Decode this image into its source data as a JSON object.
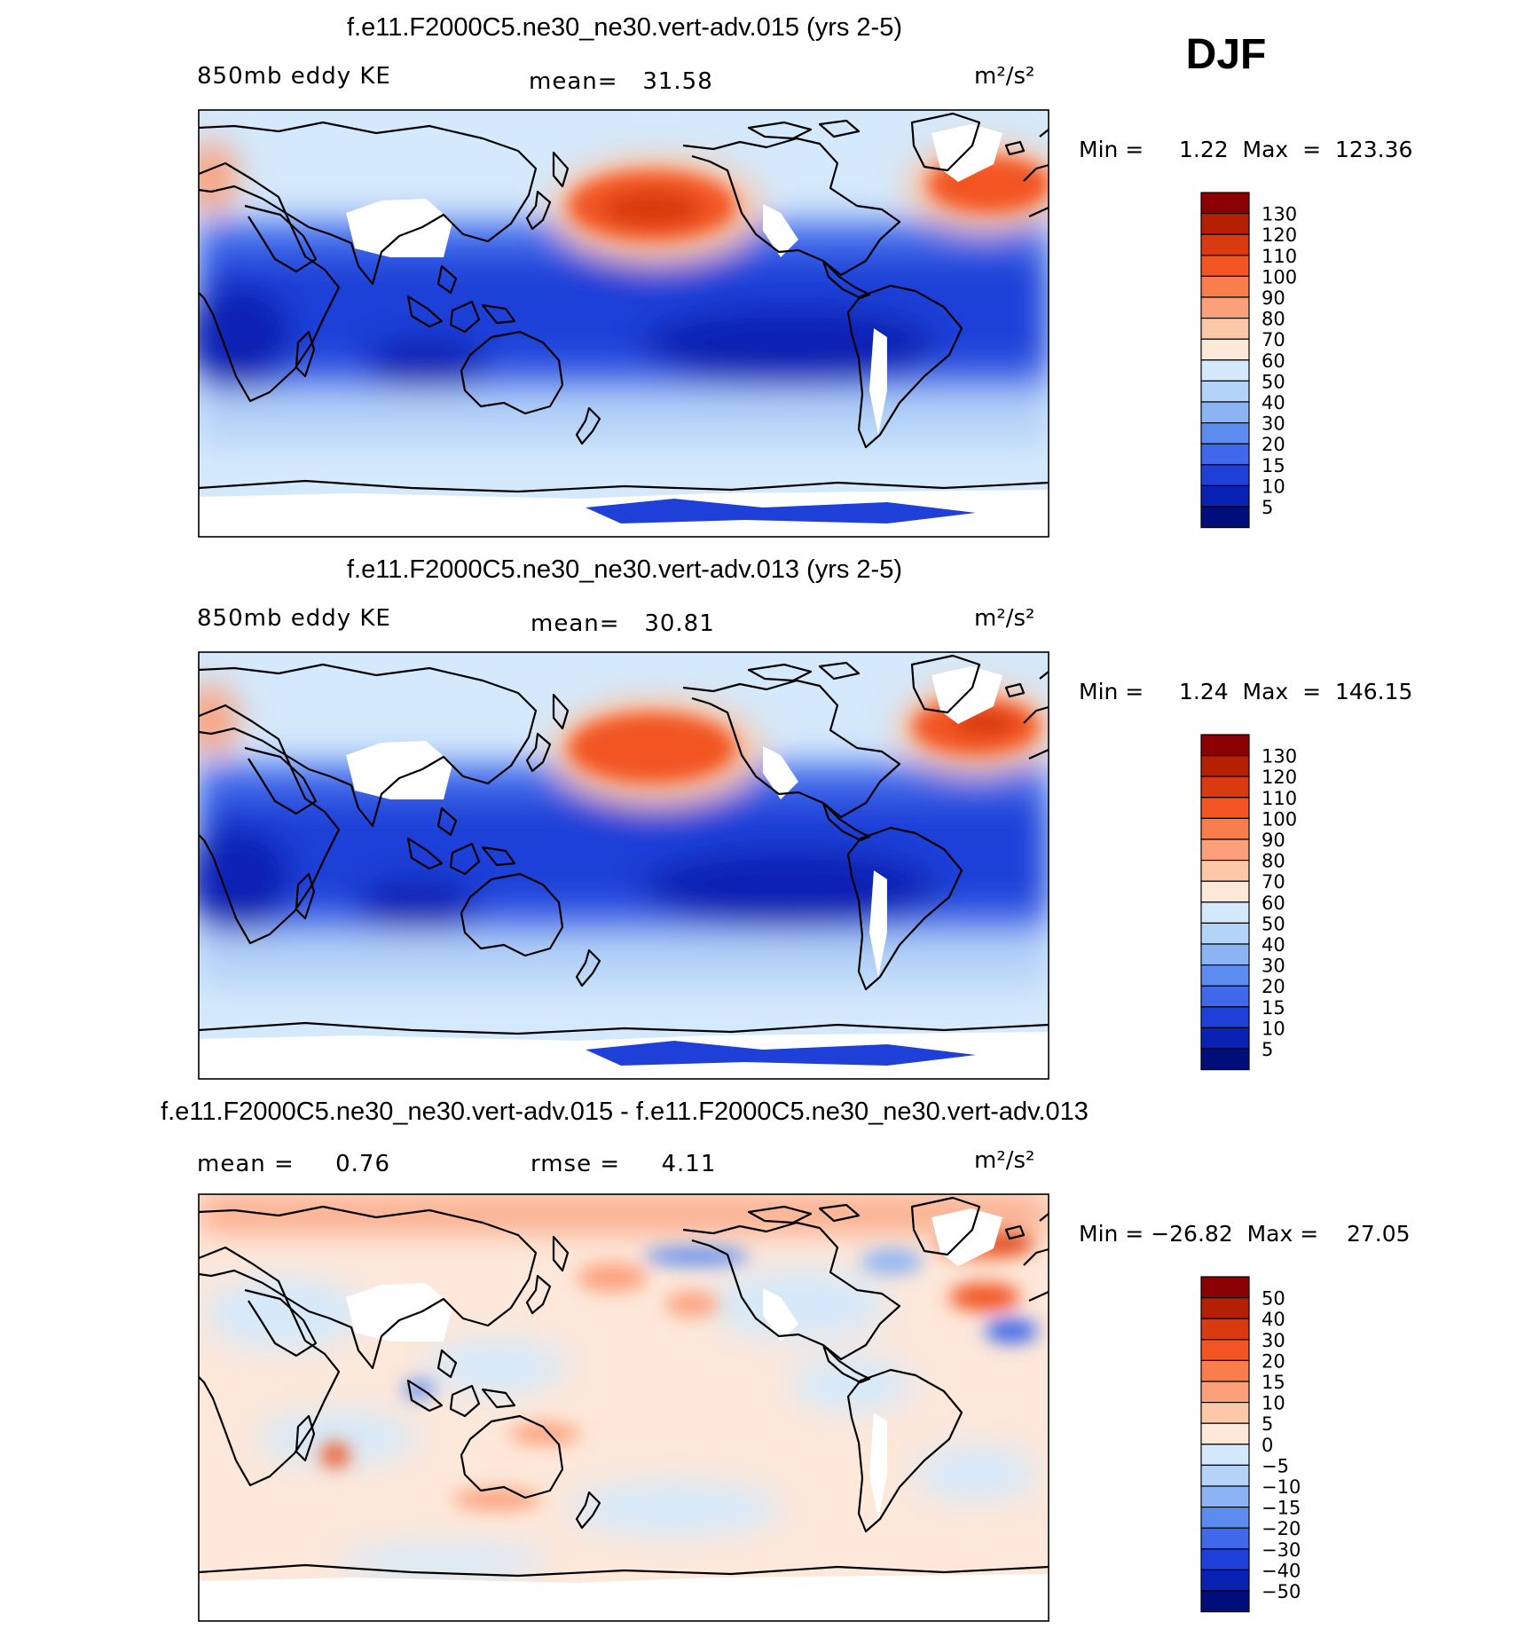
{
  "season": "DJF",
  "units": "m²/s²",
  "variable": "850mb eddy KE",
  "panels": [
    {
      "title": "f.e11.F2000C5.ne30_ne30.vert-adv.015 (yrs 2-5)",
      "left_label": "850mb eddy KE",
      "center_label": "mean=   31.58",
      "units": "m²/s²",
      "minmax_label": "Min =     1.22  Max  =  123.36"
    },
    {
      "title": "f.e11.F2000C5.ne30_ne30.vert-adv.013 (yrs 2-5)",
      "left_label": "850mb eddy KE",
      "center_label": "mean=   30.81",
      "units": "m²/s²",
      "minmax_label": "Min =     1.24  Max  =  146.15"
    },
    {
      "title": "f.e11.F2000C5.ne30_ne30.vert-adv.015 - f.e11.F2000C5.ne30_ne30.vert-adv.013",
      "left_label": "mean =     0.76",
      "center_label": "rmse =     4.11",
      "units": "m²/s²",
      "minmax_label": "Min = −26.82  Max =    27.05"
    }
  ],
  "chart_data": [
    {
      "type": "heatmap",
      "title": "f.e11.F2000C5.ne30_ne30.vert-adv.015 (yrs 2-5)",
      "field": "850mb eddy KE",
      "mean": 31.58,
      "min": 1.22,
      "max": 123.36,
      "units": "m2/s2",
      "legend_levels": [
        130,
        120,
        110,
        100,
        90,
        80,
        70,
        60,
        50,
        40,
        30,
        20,
        15,
        10,
        5
      ],
      "legend_colors": [
        "#8b0000",
        "#b52000",
        "#d93a10",
        "#f25522",
        "#fa7d4c",
        "#fca07c",
        "#fdc8a8",
        "#fde8da",
        "#d4e9fb",
        "#b4d3f8",
        "#8cb4f4",
        "#5c8cf0",
        "#3f69ea",
        "#1e40d8",
        "#0a22b4",
        "#000e7c"
      ]
    },
    {
      "type": "heatmap",
      "title": "f.e11.F2000C5.ne30_ne30.vert-adv.013 (yrs 2-5)",
      "field": "850mb eddy KE",
      "mean": 30.81,
      "min": 1.24,
      "max": 146.15,
      "units": "m2/s2",
      "legend_levels": [
        130,
        120,
        110,
        100,
        90,
        80,
        70,
        60,
        50,
        40,
        30,
        20,
        15,
        10,
        5
      ],
      "legend_colors": [
        "#8b0000",
        "#b52000",
        "#d93a10",
        "#f25522",
        "#fa7d4c",
        "#fca07c",
        "#fdc8a8",
        "#fde8da",
        "#d4e9fb",
        "#b4d3f8",
        "#8cb4f4",
        "#5c8cf0",
        "#3f69ea",
        "#1e40d8",
        "#0a22b4",
        "#000e7c"
      ]
    },
    {
      "type": "heatmap",
      "title": "f.e11.F2000C5.ne30_ne30.vert-adv.015 - f.e11.F2000C5.ne30_ne30.vert-adv.013",
      "field": "850mb eddy KE difference",
      "mean": 0.76,
      "rmse": 4.11,
      "min": -26.82,
      "max": 27.05,
      "units": "m2/s2",
      "legend_levels": [
        50,
        40,
        30,
        20,
        15,
        10,
        5,
        0,
        -5,
        -10,
        -15,
        -20,
        -30,
        -40,
        -50
      ],
      "legend_labels": [
        "50",
        "40",
        "30",
        "20",
        "15",
        "10",
        "5",
        "0",
        "−5",
        "−10",
        "−15",
        "−20",
        "−30",
        "−40",
        "−50"
      ],
      "legend_colors": [
        "#8b0000",
        "#b52000",
        "#d93a10",
        "#f25522",
        "#fa7d4c",
        "#fca07c",
        "#fdc8a8",
        "#fde8da",
        "#d4e9fb",
        "#b4d3f8",
        "#8cb4f4",
        "#5c8cf0",
        "#3f69ea",
        "#1e40d8",
        "#0a22b4",
        "#000e7c"
      ]
    }
  ]
}
